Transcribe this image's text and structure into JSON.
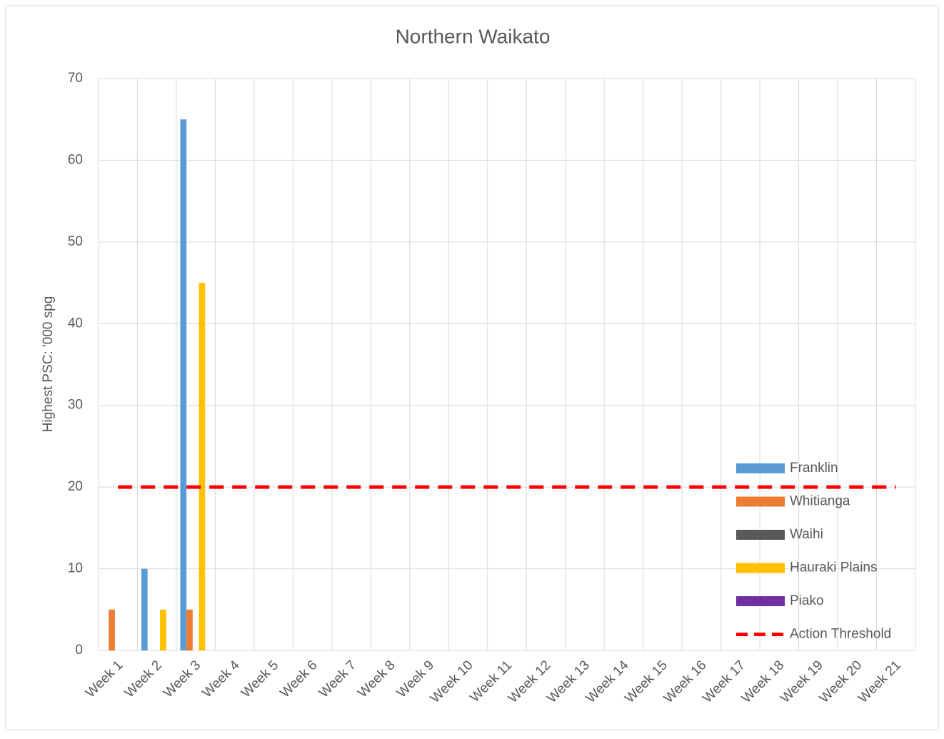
{
  "chart_data": {
    "type": "bar",
    "title": "Northern Waikato",
    "y_label": "Highest PSC: '000 spg",
    "categories": [
      "Week 1",
      "Week 2",
      "Week 3",
      "Week 4",
      "Week 5",
      "Week 6",
      "Week 7",
      "Week 8",
      "Week 9",
      "Week 10",
      "Week 11",
      "Week 12",
      "Week 13",
      "Week 14",
      "Week 15",
      "Week 16",
      "Week 17",
      "Week 18",
      "Week 19",
      "Week 20",
      "Week 21"
    ],
    "series": [
      {
        "name": "Franklin",
        "color": "#5b9bd5",
        "values": [
          null,
          10,
          65,
          null,
          null,
          null,
          null,
          null,
          null,
          null,
          null,
          null,
          null,
          null,
          null,
          null,
          null,
          null,
          null,
          null,
          null
        ]
      },
      {
        "name": "Whitianga",
        "color": "#ed7d31",
        "values": [
          5,
          null,
          5,
          null,
          null,
          null,
          null,
          null,
          null,
          null,
          null,
          null,
          null,
          null,
          null,
          null,
          null,
          null,
          null,
          null,
          null
        ]
      },
      {
        "name": "Waihi",
        "color": "#595959",
        "values": [
          null,
          null,
          null,
          null,
          null,
          null,
          null,
          null,
          null,
          null,
          null,
          null,
          null,
          null,
          null,
          null,
          null,
          null,
          null,
          null,
          null
        ]
      },
      {
        "name": "Hauraki Plains",
        "color": "#ffc000",
        "values": [
          null,
          5,
          45,
          null,
          null,
          null,
          null,
          null,
          null,
          null,
          null,
          null,
          null,
          null,
          null,
          null,
          null,
          null,
          null,
          null,
          null
        ]
      },
      {
        "name": "Piako",
        "color": "#7030a0",
        "values": [
          null,
          null,
          null,
          null,
          null,
          null,
          null,
          null,
          null,
          null,
          null,
          null,
          null,
          null,
          null,
          null,
          null,
          null,
          null,
          null,
          null
        ]
      },
      {
        "name": "Action Threshold",
        "color": "#ff0000",
        "type": "line",
        "dashed": true,
        "values": [
          20,
          20,
          20,
          20,
          20,
          20,
          20,
          20,
          20,
          20,
          20,
          20,
          20,
          20,
          20,
          20,
          20,
          20,
          20,
          20,
          20
        ]
      }
    ],
    "ylim": [
      0,
      70
    ],
    "yticks": [
      0,
      10,
      20,
      30,
      40,
      50,
      60,
      70
    ],
    "grid": true,
    "legend": "right"
  }
}
